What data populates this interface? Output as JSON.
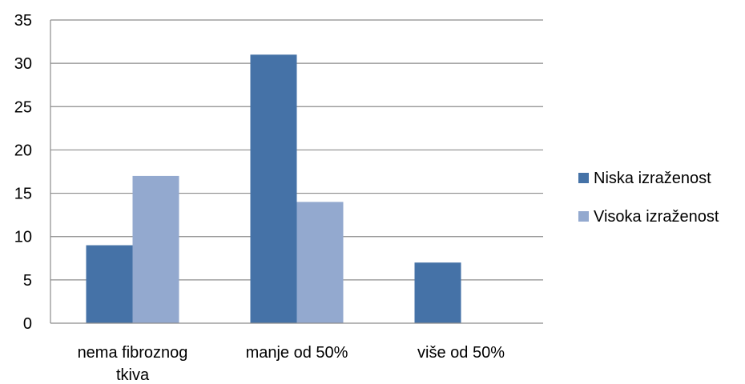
{
  "chart_data": {
    "type": "bar",
    "categories": [
      [
        "nema fibroznog",
        "tkiva"
      ],
      [
        "manje od 50%"
      ],
      [
        "više od 50%"
      ]
    ],
    "series": [
      {
        "name": "Niska izraženost",
        "color": "#4572A7",
        "values": [
          9,
          31,
          7
        ]
      },
      {
        "name": "Visoka izraženost",
        "color": "#93A9CF",
        "values": [
          17,
          14,
          0
        ]
      }
    ],
    "title": "",
    "xlabel": "",
    "ylabel": "",
    "ylim": [
      0,
      35
    ],
    "yticks": [
      0,
      5,
      10,
      15,
      20,
      25,
      30,
      35
    ],
    "grid": true,
    "legend_position": "right"
  }
}
